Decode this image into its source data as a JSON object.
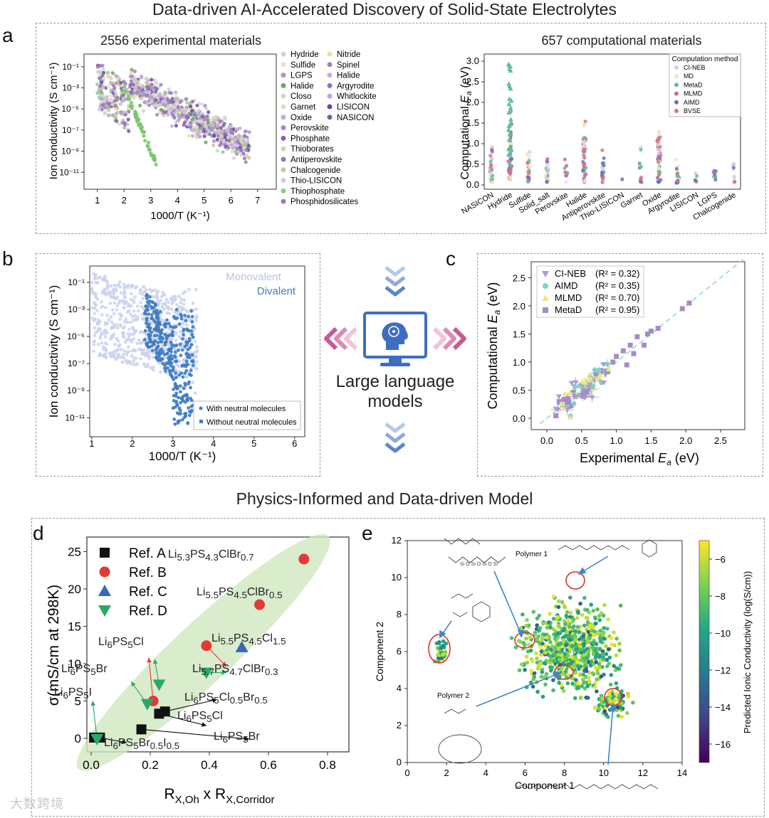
{
  "title_top": "Data-driven AI-Accelerated Discovery of Solid-State Electrolytes",
  "title_mid": "Physics-Informed and Data-driven Model",
  "watermark": "大数跨境",
  "center_label": [
    "Large language",
    "models"
  ],
  "panel_letters": {
    "a": "a",
    "b": "b",
    "c": "c",
    "d": "d",
    "e": "e"
  },
  "panel_a_left": {
    "subtitle": "2556  experimental  materials",
    "ylabel": "Ion conductivity (S cm⁻¹)",
    "xlabel": "1000/T (K⁻¹)",
    "xticks": [
      "1",
      "2",
      "3",
      "4",
      "5",
      "6",
      "7"
    ],
    "yticks": [
      "10⁻¹",
      "10⁻³",
      "10⁻⁵",
      "10⁻⁷",
      "10⁻⁹",
      "10⁻¹¹"
    ],
    "legend_col1": [
      {
        "label": "Hydride",
        "color": "#cfcfe6"
      },
      {
        "label": "Sulfide",
        "color": "#e4e2c8"
      },
      {
        "label": "LGPS",
        "color": "#b690cc"
      },
      {
        "label": "Halide",
        "color": "#6aaa5c"
      },
      {
        "label": "Closo",
        "color": "#d4d4d4"
      },
      {
        "label": "Garnet",
        "color": "#e2d9c1"
      },
      {
        "label": "Oxide",
        "color": "#b9b2d8"
      },
      {
        "label": "Perovskite",
        "color": "#9e8fc2"
      },
      {
        "label": "Phosphate",
        "color": "#8a5fb0"
      },
      {
        "label": "Thioborates",
        "color": "#d6d1c6"
      },
      {
        "label": "Antiperovskite",
        "color": "#8f77b8"
      },
      {
        "label": "Chalcogenide",
        "color": "#c9c59a"
      },
      {
        "label": "Thio-LISICON",
        "color": "#cfcad6"
      },
      {
        "label": "Thiophosphate",
        "color": "#8fcf8c"
      },
      {
        "label": "Phosphidosilicates",
        "color": "#8f7fbf"
      }
    ],
    "legend_col2": [
      {
        "label": "Nitride",
        "color": "#e6e3a0"
      },
      {
        "label": "Spinel",
        "color": "#a77cc0"
      },
      {
        "label": "Halide",
        "color": "#c5aedb"
      },
      {
        "label": "Argyrodite",
        "color": "#9b6cc0"
      },
      {
        "label": "Whitlockite",
        "color": "#c6a2d6"
      },
      {
        "label": "LISICON",
        "color": "#6e4a9e"
      },
      {
        "label": "NASICON",
        "color": "#7b5aa8"
      }
    ]
  },
  "panel_a_right": {
    "subtitle": "657 computational materials",
    "ylabel": "Computational E_a (eV)",
    "yticks": [
      "0.0",
      "0.5",
      "1.0",
      "1.5",
      "2.0",
      "2.5",
      "3.0"
    ],
    "categories": [
      "NASICON",
      "Hydride",
      "Sulfide",
      "Solid_salt",
      "Perovskite",
      "Halide",
      "Antiperovskite",
      "Thio-LISICON",
      "Garnet",
      "Oxide",
      "Argyrodite",
      "LISICON",
      "LGPS",
      "Chalcogenide"
    ],
    "legend_title": "Computation method",
    "legend": [
      {
        "label": "CI-NEB",
        "color": "#cfd2e6",
        "marker": "circle"
      },
      {
        "label": "MD",
        "color": "#f3e3c3",
        "marker": "square"
      },
      {
        "label": "MetaD",
        "color": "#5fbf9a",
        "marker": "triangle"
      },
      {
        "label": "MLMD",
        "color": "#c86aa0",
        "marker": "diamond"
      },
      {
        "label": "AIMD",
        "color": "#6a72c0",
        "marker": "star"
      },
      {
        "label": "BVSE",
        "color": "#e0707a",
        "marker": "circle"
      }
    ]
  },
  "panel_b": {
    "ylabel": "Ion conductivity (S cm⁻¹)",
    "xlabel": "1000/T (K⁻¹)",
    "xticks": [
      "1",
      "2",
      "3",
      "4",
      "5",
      "6"
    ],
    "yticks": [
      "10⁻¹",
      "10⁻³",
      "10⁻⁵",
      "10⁻⁷",
      "10⁻⁹",
      "10⁻¹¹"
    ],
    "label_mono": "Monovalent",
    "label_di": "Divalent",
    "legend": [
      "With neutral molecules",
      "Without neutral molecules"
    ],
    "colors": {
      "mono": "#c9d2ee",
      "di": "#3f7cc4"
    }
  },
  "panel_c": {
    "ylabel": "Computational E_a (eV)",
    "xlabel": "Experimental E_a (eV)",
    "xticks": [
      "0.0",
      "0.5",
      "1.0",
      "1.5",
      "2.0",
      "2.5"
    ],
    "yticks": [
      "0.0",
      "0.5",
      "1.0",
      "1.5",
      "2.0",
      "2.5"
    ],
    "legend": [
      {
        "label": "CI-NEB",
        "r2": "(R² = 0.32)",
        "color": "#a99ccc",
        "marker": "triangle-down"
      },
      {
        "label": "AIMD",
        "r2": "(R² = 0.35)",
        "color": "#7fd3c4",
        "marker": "circle"
      },
      {
        "label": "MLMD",
        "r2": "(R² = 0.70)",
        "color": "#f1e58a",
        "marker": "triangle"
      },
      {
        "label": "MetaD",
        "r2": "(R² = 0.95)",
        "color": "#a58cc8",
        "marker": "square"
      }
    ]
  },
  "chart_data": [
    {
      "type": "scatter",
      "panel": "d",
      "xlabel": "R_X,Oh x R_X,Corridor",
      "ylabel": "σ(mS/cm at 298K)",
      "xlim": [
        0,
        0.8
      ],
      "ylim": [
        -1,
        27
      ],
      "xticks": [
        "0.0",
        "0.2",
        "0.4",
        "0.6",
        "0.8"
      ],
      "yticks": [
        "0",
        "5",
        "10",
        "15",
        "20",
        "25"
      ],
      "legend_placement": "top-left",
      "series": [
        {
          "name": "Ref. A",
          "marker": "square",
          "color": "#111111",
          "points": [
            {
              "x": 0.01,
              "y": 0.1
            },
            {
              "x": 0.03,
              "y": 0.1
            },
            {
              "x": 0.17,
              "y": 1.2
            },
            {
              "x": 0.23,
              "y": 3.3
            },
            {
              "x": 0.25,
              "y": 3.6
            }
          ]
        },
        {
          "name": "Ref. B",
          "marker": "circle",
          "color": "#e53935",
          "points": [
            {
              "x": 0.21,
              "y": 5.0
            },
            {
              "x": 0.39,
              "y": 12.4
            },
            {
              "x": 0.57,
              "y": 17.9
            },
            {
              "x": 0.72,
              "y": 24.0
            }
          ]
        },
        {
          "name": "Ref. C",
          "marker": "triangle",
          "color": "#3a67b5",
          "points": [
            {
              "x": 0.51,
              "y": 12.2
            }
          ]
        },
        {
          "name": "Ref. D",
          "marker": "triangle-down",
          "color": "#2aa86a",
          "points": [
            {
              "x": 0.02,
              "y": -0.1
            },
            {
              "x": 0.19,
              "y": 4.6
            },
            {
              "x": 0.23,
              "y": 7.2
            },
            {
              "x": 0.39,
              "y": 8.8
            }
          ]
        }
      ],
      "annotations": [
        {
          "text": "Li<sub>5.3</sub>PS<sub>4.3</sub>ClBr<sub>0.7</sub>"
        },
        {
          "text": "Li<sub>5.5</sub>PS<sub>4.5</sub>ClBr<sub>0.5</sub>"
        },
        {
          "text": "Li<sub>5.5</sub>PS<sub>4.5</sub>Cl<sub>1.5</sub>"
        },
        {
          "text": "Li<sub>5.7</sub>PS<sub>4.7</sub>ClBr<sub>0.3</sub>"
        },
        {
          "text": "Li<sub>6</sub>PS<sub>5</sub>Cl"
        },
        {
          "text": "Li<sub>6</sub>PS<sub>5</sub>Br"
        },
        {
          "text": "Li<sub>6</sub>PS<sub>5</sub>I"
        },
        {
          "text": "Li<sub>6</sub>PS<sub>5</sub>Cl<sub>0.5</sub>Br<sub>0.5</sub>"
        },
        {
          "text": "Li<sub>6</sub>PS<sub>5</sub>Cl"
        },
        {
          "text": "Li<sub>6</sub>PS<sub>5</sub>Br"
        },
        {
          "text": "Li<sub>6</sub>PS<sub>5</sub>Br<sub>0.5</sub>I<sub>0.5</sub>"
        }
      ]
    },
    {
      "type": "scatter",
      "panel": "e",
      "xlabel": "Component 1",
      "ylabel": "Component 2",
      "xlim": [
        0,
        14
      ],
      "ylim": [
        0,
        12
      ],
      "xticks": [
        "0",
        "2",
        "4",
        "6",
        "8",
        "10",
        "12",
        "14"
      ],
      "yticks": [
        "0",
        "2",
        "4",
        "6",
        "8",
        "10",
        "12"
      ],
      "colorbar_label": "Predicted Ionic Conductivity (log(S/cm))",
      "colorbar_ticks": [
        "−6",
        "−8",
        "−10",
        "−12",
        "−14",
        "−16"
      ],
      "colorbar_range": [
        -17,
        -5
      ],
      "labels": [
        "Polymer 1",
        "Polymer 2"
      ]
    }
  ]
}
